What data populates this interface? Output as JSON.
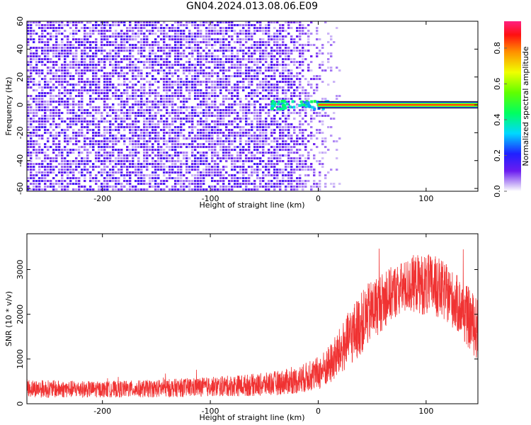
{
  "title": "GN04.2024.013.08.06.E09",
  "colors": {
    "snr_line": "#f03232",
    "spectrogram_noise_light": "#d8c8f8",
    "spectrogram_noise_dark": "#7020f0",
    "axis": "#000000",
    "background": "#ffffff"
  },
  "chart_data": [
    {
      "type": "heatmap",
      "title": "GN04.2024.013.08.06.E09",
      "xlabel": "Height of straight line (km)",
      "ylabel": "Frequency (Hz)",
      "xlim": [
        -270,
        148
      ],
      "ylim": [
        -62,
        60
      ],
      "x_ticks": [
        -200,
        -100,
        0,
        100
      ],
      "x_tick_labels": [
        "-200",
        "-100",
        "0",
        "100"
      ],
      "y_ticks": [
        -60,
        -40,
        -20,
        0,
        20,
        40,
        60
      ],
      "y_tick_labels": [
        "-60",
        "-40",
        "-20",
        "0",
        "20",
        "40",
        "60"
      ],
      "grid": false,
      "description_of_signal": {
        "noise_region_x": [
          -270,
          15
        ],
        "broadband_noise_amplitude": 0.15,
        "signal_onset_x": -45,
        "signal_line_frequency_hz": 0,
        "signal_line_amplitude": 0.95,
        "signal_line_halfwidth_hz": 2
      },
      "colorbar": {
        "label": "Normalized spectral amplitude",
        "range": [
          0,
          0.95
        ],
        "ticks": [
          0.0,
          0.2,
          0.4,
          0.6,
          0.8
        ],
        "tick_labels": [
          "0.0",
          "0.2",
          "0.4",
          "0.6",
          "0.8"
        ]
      }
    },
    {
      "type": "line",
      "xlabel": "Height of straight line (km)",
      "ylabel": "SNR (10 * v/v)",
      "xlim": [
        -270,
        148
      ],
      "ylim": [
        0,
        3800
      ],
      "x_ticks": [
        -200,
        -100,
        0,
        100
      ],
      "x_tick_labels": [
        "-200",
        "-100",
        "0",
        "100"
      ],
      "y_ticks": [
        0,
        1000,
        2000,
        3000
      ],
      "y_tick_labels": [
        "0",
        "1000",
        "2000",
        "3000"
      ],
      "grid": false,
      "series": [
        {
          "x": [
            -270,
            -250,
            -200,
            -150,
            -100,
            -50,
            -20,
            0,
            10,
            20,
            30,
            40,
            50,
            60,
            70,
            80,
            90,
            100,
            110,
            120,
            130,
            140,
            148
          ],
          "y": [
            350,
            330,
            320,
            340,
            380,
            430,
            520,
            680,
            850,
            1150,
            1500,
            1800,
            2100,
            2300,
            2500,
            2600,
            2700,
            2650,
            2600,
            2450,
            2200,
            1900,
            1650
          ],
          "noise_amplitude": [
            200,
            200,
            180,
            200,
            220,
            260,
            300,
            380,
            450,
            550,
            650,
            700,
            700,
            650,
            600,
            600,
            650,
            700,
            700,
            650,
            650,
            700,
            700
          ],
          "series_color": "#f03232"
        }
      ]
    }
  ]
}
